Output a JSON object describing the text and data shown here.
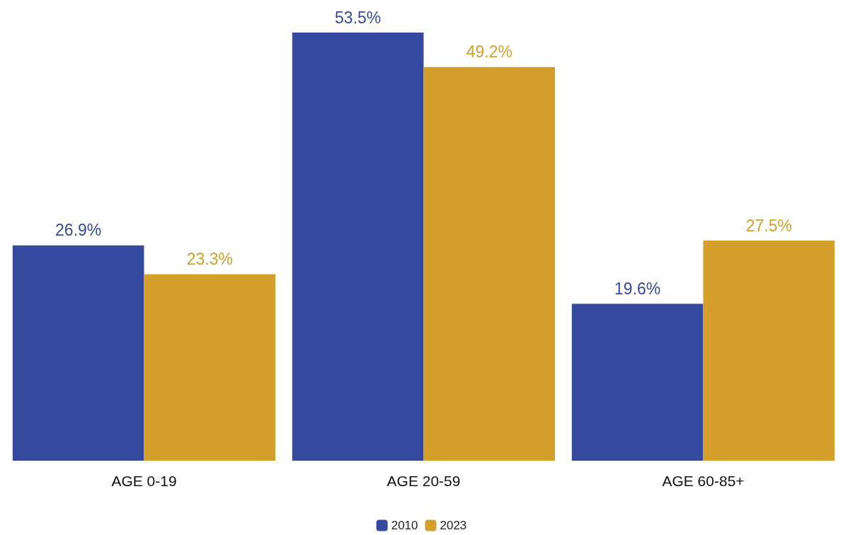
{
  "chart_data": {
    "type": "bar",
    "categories": [
      "AGE 0-19",
      "AGE 20-59",
      "AGE 60-85+"
    ],
    "series": [
      {
        "name": "2010",
        "color": "#354a9e",
        "values": [
          26.9,
          53.5,
          19.6
        ],
        "value_labels": [
          "26.9%",
          "53.5%",
          "19.6%"
        ]
      },
      {
        "name": "2023",
        "color": "#d4a02b",
        "values": [
          23.3,
          49.2,
          27.5
        ],
        "value_labels": [
          "23.3%",
          "49.2%",
          "27.5%"
        ]
      }
    ],
    "legend": "bottom"
  }
}
